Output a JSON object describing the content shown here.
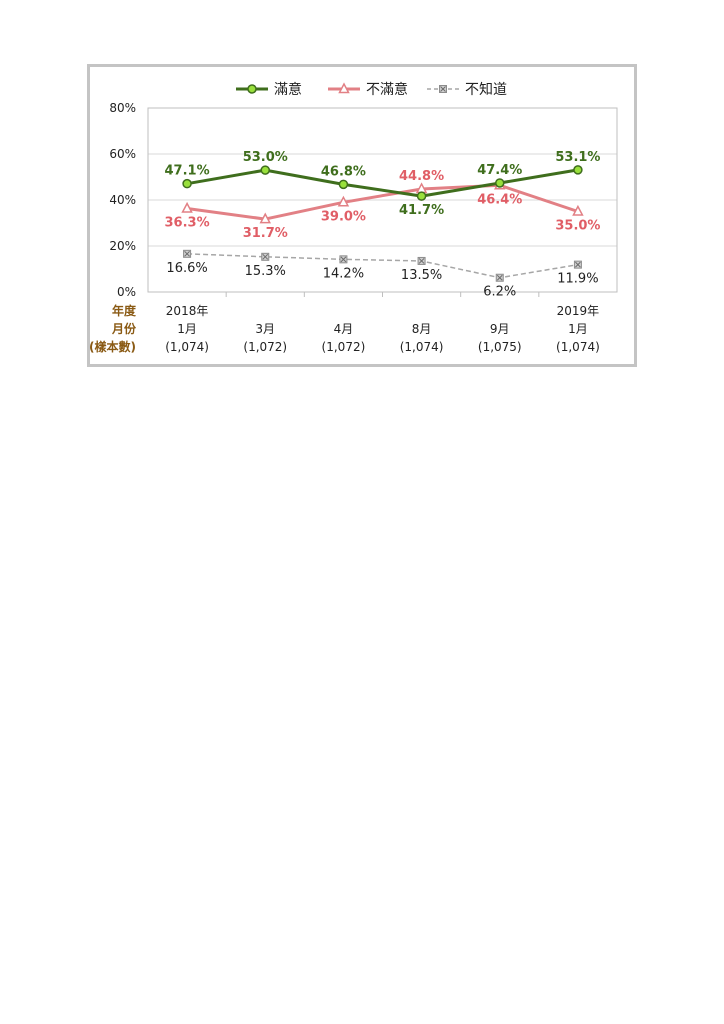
{
  "chart_data": {
    "type": "line",
    "legend_position": "top",
    "categories": [
      {
        "year": "2018年",
        "month": "1月",
        "sample": "(1,074)"
      },
      {
        "year": "",
        "month": "3月",
        "sample": "(1,072)"
      },
      {
        "year": "",
        "month": "4月",
        "sample": "(1,072)"
      },
      {
        "year": "",
        "month": "8月",
        "sample": "(1,074)"
      },
      {
        "year": "",
        "month": "9月",
        "sample": "(1,075)"
      },
      {
        "year": "2019年",
        "month": "1月",
        "sample": "(1,074)"
      }
    ],
    "row_labels": [
      "年度",
      "月份",
      "(樣本數)"
    ],
    "y_ticks": [
      "0%",
      "20%",
      "40%",
      "60%",
      "80%"
    ],
    "ylim": [
      0,
      80
    ],
    "grid": true,
    "series": [
      {
        "name": "滿意",
        "color": "#3f6e1d",
        "marker_fill": "#99e03c",
        "marker": "circle",
        "dashed": false,
        "values": [
          47.1,
          53.0,
          46.8,
          41.7,
          47.4,
          53.1
        ],
        "labels": [
          "47.1%",
          "53.0%",
          "46.8%",
          "41.7%",
          "47.4%",
          "53.1%"
        ],
        "label_pos": [
          "above",
          "above",
          "above",
          "below",
          "above",
          "above"
        ],
        "label_color": "#3f6e1d",
        "label_bold": true
      },
      {
        "name": "不滿意",
        "color": "#e28085",
        "marker_fill": "#ffffff",
        "marker": "triangle",
        "dashed": false,
        "values": [
          36.3,
          31.7,
          39.0,
          44.8,
          46.4,
          35.0
        ],
        "labels": [
          "36.3%",
          "31.7%",
          "39.0%",
          "44.8%",
          "46.4%",
          "35.0%"
        ],
        "label_pos": [
          "below",
          "below",
          "below",
          "above",
          "below",
          "below"
        ],
        "label_color": "#e05e66",
        "label_bold": true
      },
      {
        "name": "不知道",
        "color": "#a6a6a6",
        "marker_fill": "#cfcfcf",
        "marker": "square-x",
        "dashed": true,
        "values": [
          16.6,
          15.3,
          14.2,
          13.5,
          6.2,
          11.9
        ],
        "labels": [
          "16.6%",
          "15.3%",
          "14.2%",
          "13.5%",
          "6.2%",
          "11.9%"
        ],
        "label_pos": [
          "below",
          "below",
          "below",
          "below",
          "below",
          "below"
        ],
        "label_color": "#222222",
        "label_bold": false
      }
    ]
  }
}
